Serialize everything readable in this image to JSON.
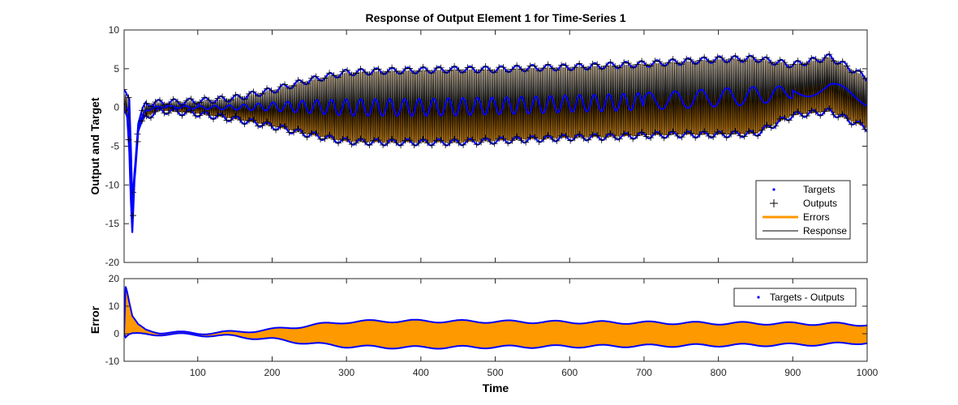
{
  "chart_data": [
    {
      "type": "line",
      "title": "Response of Output Element 1 for Time-Series 1",
      "xlabel": "",
      "ylabel": "Output and Target",
      "xlim": [
        1,
        1000
      ],
      "ylim": [
        -20,
        10
      ],
      "xticks": [
        100,
        200,
        300,
        400,
        500,
        600,
        700,
        800,
        900,
        1000
      ],
      "yticks": [
        -20,
        -15,
        -10,
        -5,
        0,
        5,
        10
      ],
      "legend_position": "lower-right",
      "series": [
        {
          "name": "Targets",
          "marker": "dot",
          "color": "#0000ff"
        },
        {
          "name": "Outputs",
          "marker": "plus",
          "color": "#000000"
        },
        {
          "name": "Errors",
          "style": "bar",
          "color": "#ff9900"
        },
        {
          "name": "Response",
          "style": "line",
          "color": "#000000"
        }
      ],
      "envelope": {
        "x": [
          1,
          5,
          8,
          10,
          12,
          15,
          20,
          30,
          50,
          100,
          150,
          200,
          250,
          300,
          350,
          400,
          450,
          500,
          550,
          600,
          650,
          700,
          750,
          800,
          850,
          900,
          950,
          1000
        ],
        "upper": [
          2.2,
          1.2,
          0.8,
          -5,
          -12,
          -8,
          -2,
          0.5,
          0.6,
          0.8,
          1.2,
          2.2,
          3.5,
          4.5,
          4.7,
          4.8,
          4.9,
          4.9,
          5.1,
          5.2,
          5.4,
          5.6,
          5.9,
          6.2,
          6.3,
          5.5,
          6.5,
          3.8
        ],
        "lower": [
          -0.5,
          -1.5,
          -6,
          -12,
          -16,
          -9,
          -3,
          -1.2,
          -0.4,
          -0.8,
          -1.5,
          -2.4,
          -3.5,
          -4.4,
          -4.5,
          -4.5,
          -4.5,
          -4.3,
          -4.1,
          -3.9,
          -3.8,
          -3.6,
          -3.5,
          -3.5,
          -3.4,
          -1.0,
          -0.5,
          -2.7
        ],
        "center": [
          0,
          -0.5,
          -1,
          -8,
          -14,
          -8.5,
          -2.5,
          -0.3,
          0.1,
          0,
          0,
          0.1,
          0.1,
          0,
          0,
          0,
          0.1,
          0.2,
          0.3,
          0.5,
          0.6,
          0.8,
          1.0,
          1.3,
          1.5,
          2.0,
          2.5,
          1.0
        ]
      }
    },
    {
      "type": "line",
      "title": "",
      "xlabel": "Time",
      "ylabel": "Error",
      "xlim": [
        1,
        1000
      ],
      "ylim": [
        -10,
        20
      ],
      "xticks": [
        100,
        200,
        300,
        400,
        500,
        600,
        700,
        800,
        900,
        1000
      ],
      "yticks": [
        -10,
        0,
        10,
        20
      ],
      "legend_position": "top-right",
      "series": [
        {
          "name": "Targets - Outputs",
          "marker": "dot",
          "color": "#0000ff"
        }
      ],
      "envelope": {
        "x": [
          1,
          3,
          5,
          8,
          12,
          20,
          30,
          50,
          100,
          150,
          200,
          250,
          300,
          350,
          400,
          450,
          500,
          550,
          600,
          650,
          700,
          750,
          800,
          850,
          900,
          950,
          1000
        ],
        "upper": [
          0,
          17,
          15,
          11,
          6,
          3,
          1.5,
          0.5,
          0.2,
          0.6,
          1.5,
          3.0,
          4.3,
          4.6,
          4.6,
          4.5,
          4.4,
          4.3,
          4.2,
          4.1,
          4.0,
          3.9,
          3.8,
          3.8,
          3.7,
          3.6,
          3.3
        ],
        "lower": [
          0,
          -1.5,
          -1.0,
          -0.5,
          -0.3,
          -0.2,
          -0.1,
          -0.2,
          -0.4,
          -1.0,
          -2.0,
          -3.5,
          -4.6,
          -4.9,
          -5.0,
          -4.9,
          -4.8,
          -4.7,
          -4.6,
          -4.5,
          -4.4,
          -4.3,
          -4.2,
          -4.1,
          -4.0,
          -3.8,
          -3.2
        ]
      }
    }
  ]
}
